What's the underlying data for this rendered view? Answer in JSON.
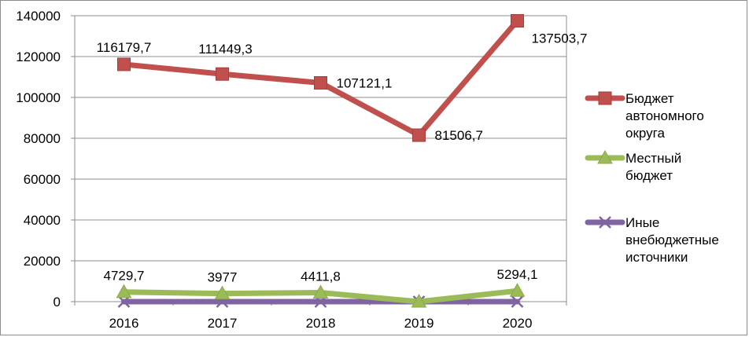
{
  "chart_data": {
    "type": "line",
    "categories": [
      "2016",
      "2017",
      "2018",
      "2019",
      "2020"
    ],
    "ylim": [
      0,
      140000
    ],
    "yticks": [
      "0",
      "20000",
      "40000",
      "60000",
      "80000",
      "100000",
      "120000",
      "140000"
    ],
    "grid": true,
    "legend_position": "right",
    "series": [
      {
        "name": "Бюджет автономного округа",
        "legend_lines": [
          "Бюджет",
          "автономного",
          "округа"
        ],
        "values": [
          116179.7,
          111449.3,
          107121.1,
          81506.7,
          137503.7
        ],
        "labels": [
          "116179,7",
          "111449,3",
          "107121,1",
          "81506,7",
          "137503,7"
        ],
        "color": "#c0504d",
        "marker": "square"
      },
      {
        "name": "Местный бюджет",
        "legend_lines": [
          "Местный",
          "бюджет"
        ],
        "values": [
          4729.7,
          3977,
          4411.8,
          0,
          5294.1
        ],
        "labels": [
          "4729,7",
          "3977",
          "4411,8",
          "",
          "5294,1"
        ],
        "color": "#9bbb59",
        "marker": "triangle"
      },
      {
        "name": "Иные внебюджетные источники",
        "legend_lines": [
          "Иные",
          "внебюджетные",
          "источники"
        ],
        "values": [
          0,
          0,
          0,
          0,
          0
        ],
        "labels": [
          "",
          "",
          "",
          "",
          ""
        ],
        "color": "#8064a2",
        "marker": "x"
      }
    ]
  }
}
